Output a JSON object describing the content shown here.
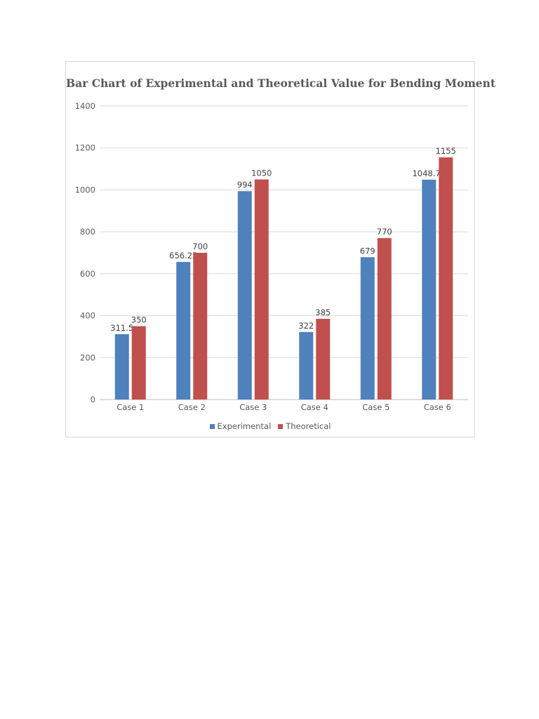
{
  "chart_data": {
    "type": "bar",
    "title": "Bar Chart of Experimental and Theoretical Value for Bending Moment",
    "xlabel": "",
    "ylabel": "",
    "ylim": [
      0,
      1400
    ],
    "yticks": [
      0,
      200,
      400,
      600,
      800,
      1000,
      1200,
      1400
    ],
    "categories": [
      "Case 1",
      "Case 2",
      "Case 3",
      "Case 4",
      "Case 5",
      "Case 6"
    ],
    "series": [
      {
        "name": "Experimental",
        "color": "#4f81bd",
        "values": [
          311.5,
          656.25,
          994,
          322,
          679,
          1048.75
        ],
        "labels": [
          "311.5",
          "656.25",
          "994",
          "322",
          "679",
          "1048.75"
        ]
      },
      {
        "name": "Theoretical",
        "color": "#c0504d",
        "values": [
          350,
          700,
          1050,
          385,
          770,
          1155
        ],
        "labels": [
          "350",
          "700",
          "1050",
          "385",
          "770",
          "1155"
        ]
      }
    ],
    "grid": true,
    "legend_position": "bottom"
  }
}
